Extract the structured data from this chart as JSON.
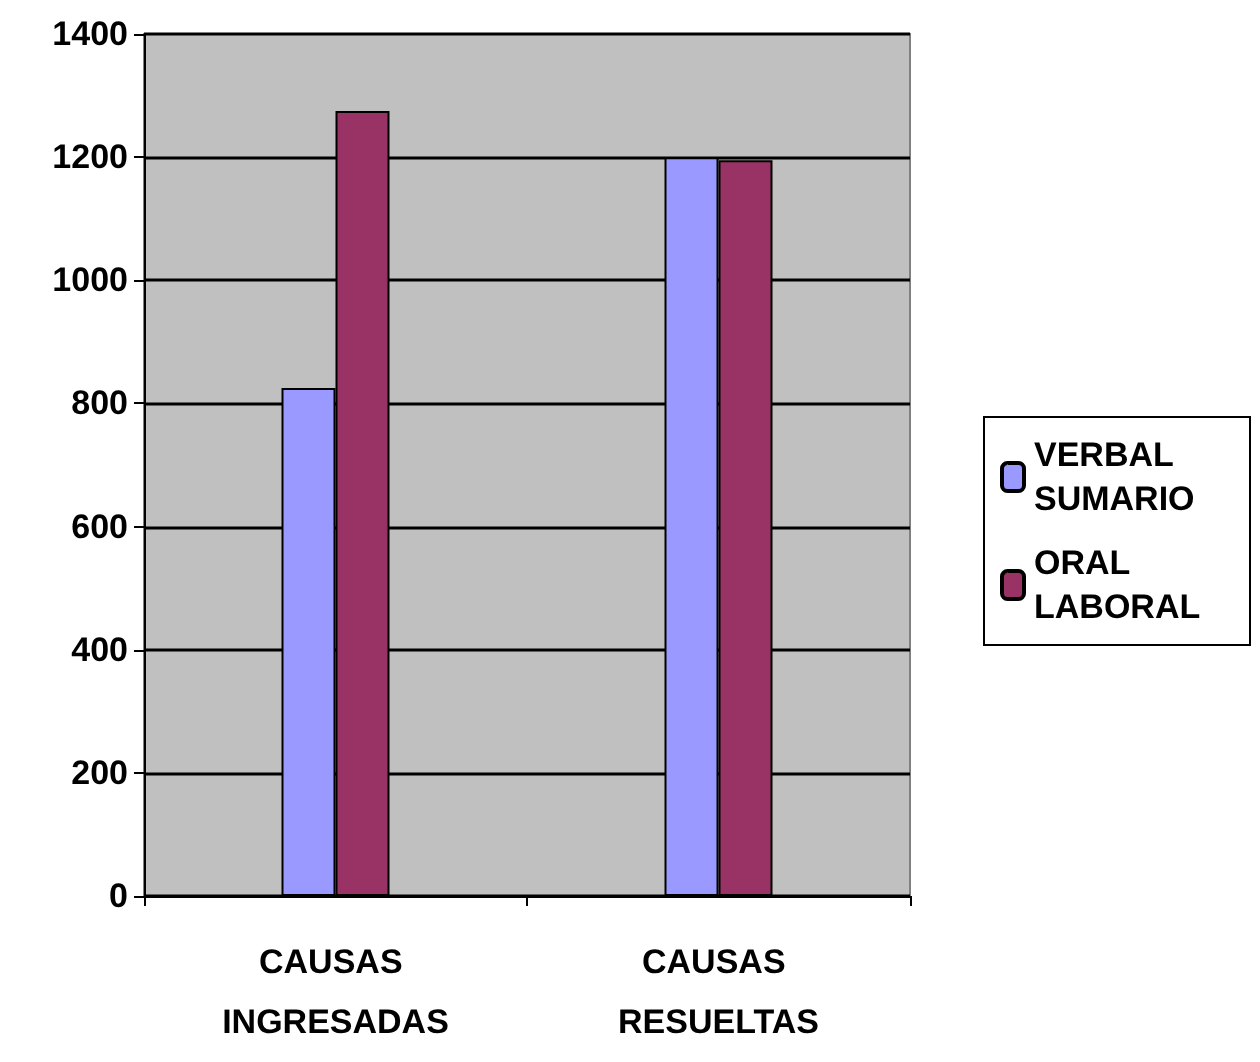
{
  "chart_data": {
    "type": "bar",
    "categories": [
      "CAUSAS INGRESADAS",
      "CAUSAS RESUELTAS"
    ],
    "series": [
      {
        "name": "VERBAL SUMARIO",
        "color": "#9999ff",
        "values": [
          825,
          1200
        ]
      },
      {
        "name": "ORAL LABORAL",
        "color": "#993366",
        "values": [
          1275,
          1195
        ]
      }
    ],
    "ylim": [
      0,
      1400
    ],
    "yticks": [
      0,
      200,
      400,
      600,
      800,
      1000,
      1200,
      1400
    ],
    "grid": "y",
    "legend": "right"
  }
}
